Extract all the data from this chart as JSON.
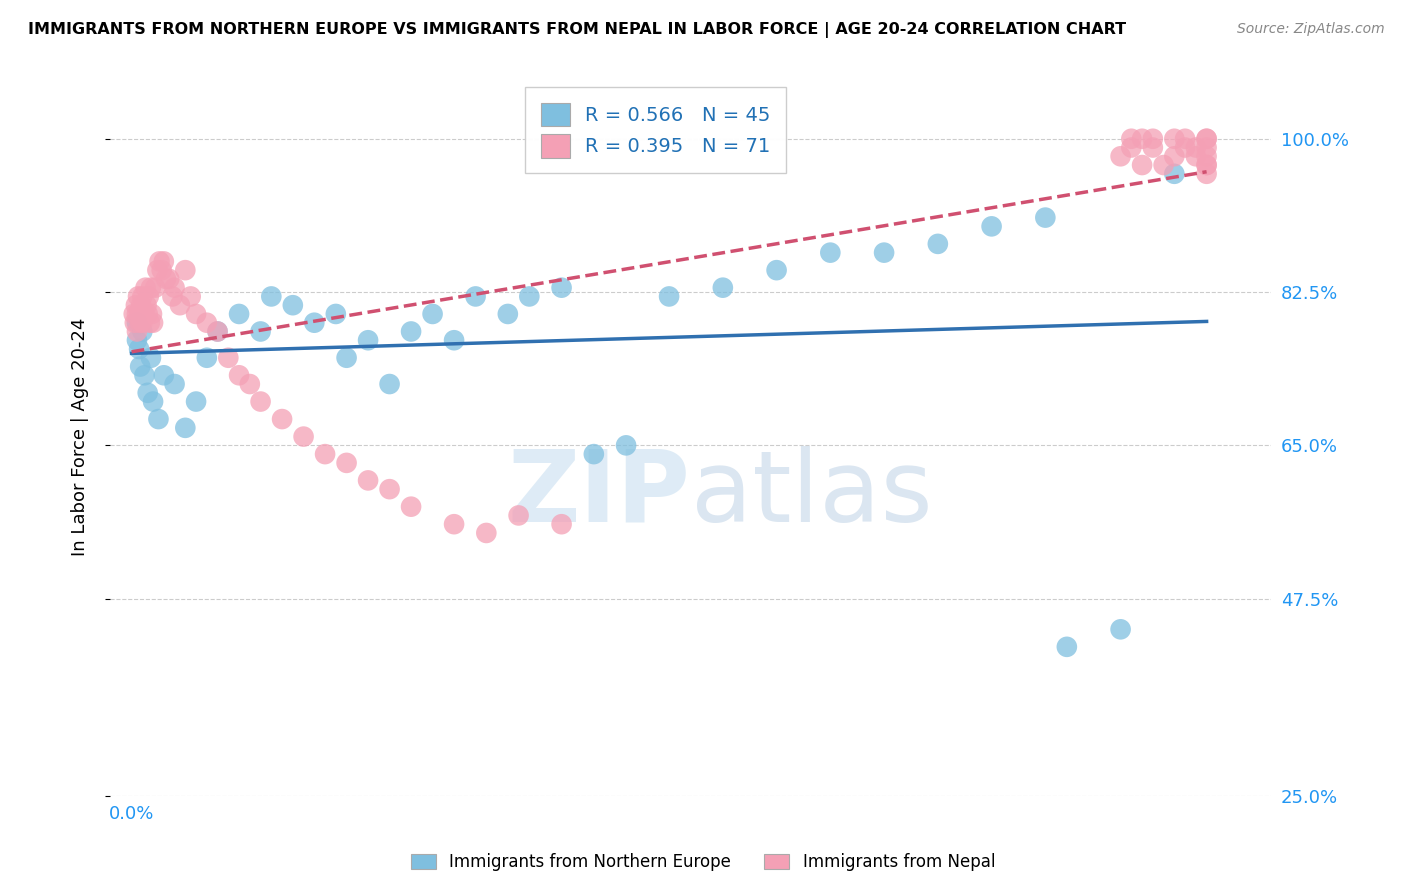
{
  "title": "IMMIGRANTS FROM NORTHERN EUROPE VS IMMIGRANTS FROM NEPAL IN LABOR FORCE | AGE 20-24 CORRELATION CHART",
  "source": "Source: ZipAtlas.com",
  "ylabel": "In Labor Force | Age 20-24",
  "blue_R": 0.566,
  "blue_N": 45,
  "pink_R": 0.395,
  "pink_N": 71,
  "blue_color": "#7fbfdf",
  "pink_color": "#f4a0b5",
  "blue_line_color": "#3070b0",
  "pink_line_color": "#d05070",
  "watermark_zip": "ZIP",
  "watermark_atlas": "atlas",
  "legend_label_blue": "Immigrants from Northern Europe",
  "legend_label_pink": "Immigrants from Nepal",
  "ytick_vals": [
    0.25,
    0.475,
    0.65,
    0.825,
    1.0
  ],
  "ytick_labels": [
    "25.0%",
    "47.5%",
    "65.0%",
    "82.5%",
    "100.0%"
  ],
  "blue_x": [
    0.005,
    0.005,
    0.007,
    0.008,
    0.01,
    0.012,
    0.015,
    0.018,
    0.02,
    0.025,
    0.03,
    0.04,
    0.05,
    0.06,
    0.07,
    0.08,
    0.1,
    0.12,
    0.13,
    0.15,
    0.17,
    0.19,
    0.2,
    0.22,
    0.24,
    0.26,
    0.28,
    0.3,
    0.32,
    0.35,
    0.37,
    0.4,
    0.43,
    0.46,
    0.5,
    0.55,
    0.6,
    0.65,
    0.7,
    0.75,
    0.8,
    0.85,
    0.87,
    0.92,
    0.97
  ],
  "blue_y": [
    0.79,
    0.77,
    0.76,
    0.74,
    0.78,
    0.73,
    0.71,
    0.75,
    0.7,
    0.68,
    0.73,
    0.72,
    0.67,
    0.7,
    0.75,
    0.78,
    0.8,
    0.78,
    0.82,
    0.81,
    0.79,
    0.8,
    0.75,
    0.77,
    0.72,
    0.78,
    0.8,
    0.77,
    0.82,
    0.8,
    0.82,
    0.83,
    0.64,
    0.65,
    0.82,
    0.83,
    0.85,
    0.87,
    0.87,
    0.88,
    0.9,
    0.91,
    0.42,
    0.44,
    0.96
  ],
  "pink_x": [
    0.002,
    0.003,
    0.004,
    0.005,
    0.005,
    0.006,
    0.007,
    0.008,
    0.009,
    0.01,
    0.01,
    0.012,
    0.013,
    0.014,
    0.015,
    0.016,
    0.017,
    0.018,
    0.019,
    0.02,
    0.022,
    0.024,
    0.026,
    0.028,
    0.03,
    0.032,
    0.035,
    0.038,
    0.04,
    0.045,
    0.05,
    0.055,
    0.06,
    0.07,
    0.08,
    0.09,
    0.1,
    0.11,
    0.12,
    0.14,
    0.16,
    0.18,
    0.2,
    0.22,
    0.24,
    0.26,
    0.3,
    0.33,
    0.36,
    0.4,
    0.92,
    0.93,
    0.93,
    0.94,
    0.94,
    0.95,
    0.95,
    0.96,
    0.97,
    0.97,
    0.98,
    0.98,
    0.99,
    0.99,
    1.0,
    1.0,
    1.0,
    1.0,
    1.0,
    1.0,
    1.0
  ],
  "pink_y": [
    0.8,
    0.79,
    0.81,
    0.8,
    0.78,
    0.82,
    0.8,
    0.79,
    0.81,
    0.79,
    0.82,
    0.8,
    0.83,
    0.81,
    0.8,
    0.82,
    0.79,
    0.83,
    0.8,
    0.79,
    0.83,
    0.85,
    0.86,
    0.85,
    0.86,
    0.84,
    0.84,
    0.82,
    0.83,
    0.81,
    0.85,
    0.82,
    0.8,
    0.79,
    0.78,
    0.75,
    0.73,
    0.72,
    0.7,
    0.68,
    0.66,
    0.64,
    0.63,
    0.61,
    0.6,
    0.58,
    0.56,
    0.55,
    0.57,
    0.56,
    0.98,
    0.99,
    1.0,
    1.0,
    0.97,
    0.99,
    1.0,
    0.97,
    0.98,
    1.0,
    0.99,
    1.0,
    0.98,
    0.99,
    1.0,
    1.0,
    0.99,
    0.98,
    0.97,
    0.97,
    0.96
  ]
}
